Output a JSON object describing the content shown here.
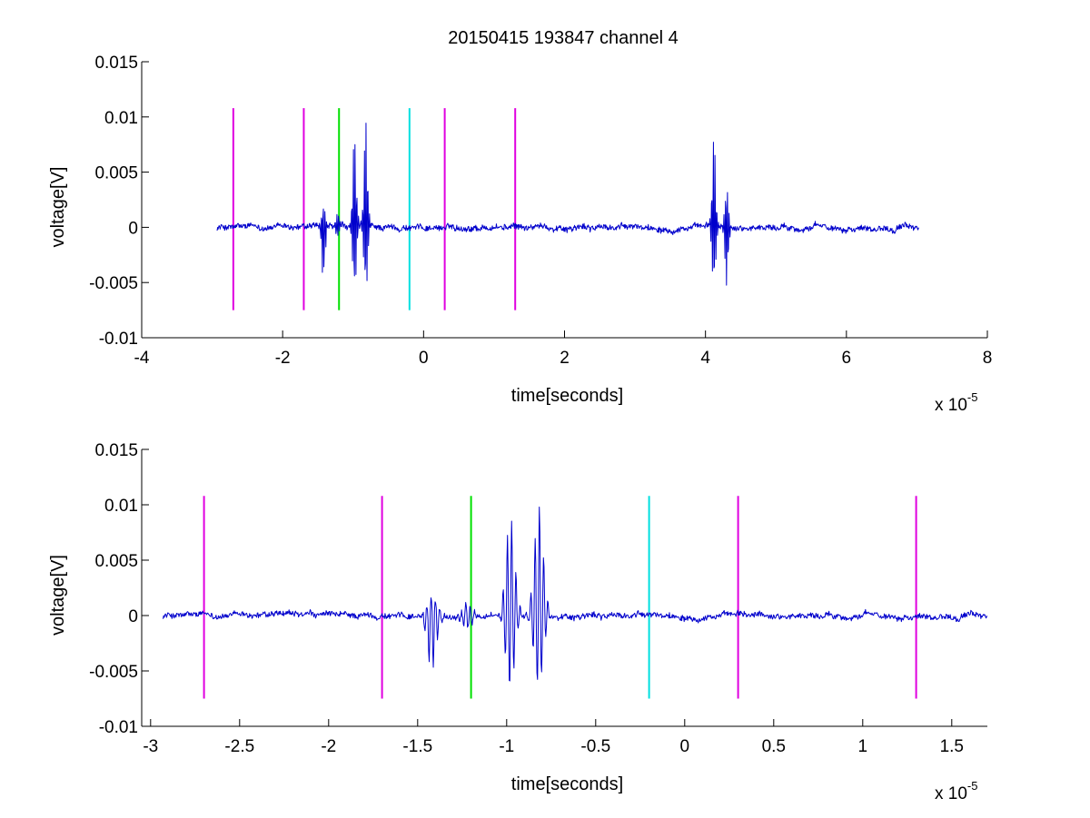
{
  "figure_title": "20150415 193847 channel 4",
  "colors": {
    "signal": "#0000cc",
    "marker_magenta": "#e000e0",
    "marker_green": "#00e000",
    "marker_cyan": "#00e0e0"
  },
  "chart_data": [
    {
      "type": "line",
      "title": "20150415 193847 channel 4",
      "xlabel": "time[seconds]",
      "ylabel": "voltage[V]",
      "x_multiplier_label": "x 10",
      "x_multiplier_exponent": "-5",
      "xlim": [
        -4,
        8
      ],
      "ylim": [
        -0.01,
        0.015
      ],
      "xticks": [
        -4,
        -2,
        0,
        2,
        4,
        6,
        8
      ],
      "xtick_labels": [
        "-4",
        "-2",
        "0",
        "2",
        "4",
        "6",
        "8"
      ],
      "yticks": [
        -0.01,
        -0.005,
        0,
        0.005,
        0.01,
        0.015
      ],
      "ytick_labels": [
        "-0.01",
        "-0.005",
        "0",
        "0.005",
        "0.01",
        "0.015"
      ],
      "grid": false,
      "signal_x_range": [
        -2.93,
        7.03
      ],
      "signal_events": [
        {
          "x": -1.42,
          "amp_pos": 0.0018,
          "amp_neg": -0.0052
        },
        {
          "x": -1.22,
          "amp_pos": 0.0012,
          "amp_neg": -0.001
        },
        {
          "x": -0.98,
          "amp_pos": 0.0087,
          "amp_neg": -0.0067
        },
        {
          "x": -0.82,
          "amp_pos": 0.0098,
          "amp_neg": -0.0066
        },
        {
          "x": 4.12,
          "amp_pos": 0.0084,
          "amp_neg": -0.006
        },
        {
          "x": 4.3,
          "amp_pos": 0.0038,
          "amp_neg": -0.0057
        }
      ],
      "markers": [
        {
          "x": -2.7,
          "color": "magenta",
          "ymin": -0.0075,
          "ymax": 0.0108
        },
        {
          "x": -1.7,
          "color": "magenta",
          "ymin": -0.0075,
          "ymax": 0.0108
        },
        {
          "x": -1.2,
          "color": "green",
          "ymin": -0.0075,
          "ymax": 0.0108
        },
        {
          "x": -0.2,
          "color": "cyan",
          "ymin": -0.0075,
          "ymax": 0.0108
        },
        {
          "x": 0.3,
          "color": "magenta",
          "ymin": -0.0075,
          "ymax": 0.0108
        },
        {
          "x": 1.3,
          "color": "magenta",
          "ymin": -0.0075,
          "ymax": 0.0108
        }
      ]
    },
    {
      "type": "line",
      "xlabel": "time[seconds]",
      "ylabel": "voltage[V]",
      "x_multiplier_label": "x 10",
      "x_multiplier_exponent": "-5",
      "xlim": [
        -3.05,
        1.7
      ],
      "ylim": [
        -0.01,
        0.015
      ],
      "xticks": [
        -3,
        -2.5,
        -2,
        -1.5,
        -1,
        -0.5,
        0,
        0.5,
        1,
        1.5
      ],
      "xtick_labels": [
        "-3",
        "-2.5",
        "-2",
        "-1.5",
        "-1",
        "-0.5",
        "0",
        "0.5",
        "1",
        "1.5"
      ],
      "yticks": [
        -0.01,
        -0.005,
        0,
        0.005,
        0.01,
        0.015
      ],
      "ytick_labels": [
        "-0.01",
        "-0.005",
        "0",
        "0.005",
        "0.01",
        "0.015"
      ],
      "grid": false,
      "signal_x_range": [
        -2.93,
        1.7
      ],
      "signal_events": [
        {
          "x": -1.42,
          "amp_pos": 0.0018,
          "amp_neg": -0.0052
        },
        {
          "x": -1.22,
          "amp_pos": 0.0012,
          "amp_neg": -0.001
        },
        {
          "x": -0.98,
          "amp_pos": 0.0087,
          "amp_neg": -0.0067
        },
        {
          "x": -0.82,
          "amp_pos": 0.0098,
          "amp_neg": -0.0066
        }
      ],
      "markers": [
        {
          "x": -2.7,
          "color": "magenta",
          "ymin": -0.0075,
          "ymax": 0.0108
        },
        {
          "x": -1.7,
          "color": "magenta",
          "ymin": -0.0075,
          "ymax": 0.0108
        },
        {
          "x": -1.2,
          "color": "green",
          "ymin": -0.0075,
          "ymax": 0.0108
        },
        {
          "x": -0.2,
          "color": "cyan",
          "ymin": -0.0075,
          "ymax": 0.0108
        },
        {
          "x": 0.3,
          "color": "magenta",
          "ymin": -0.0075,
          "ymax": 0.0108
        },
        {
          "x": 1.3,
          "color": "magenta",
          "ymin": -0.0075,
          "ymax": 0.0108
        }
      ]
    }
  ]
}
